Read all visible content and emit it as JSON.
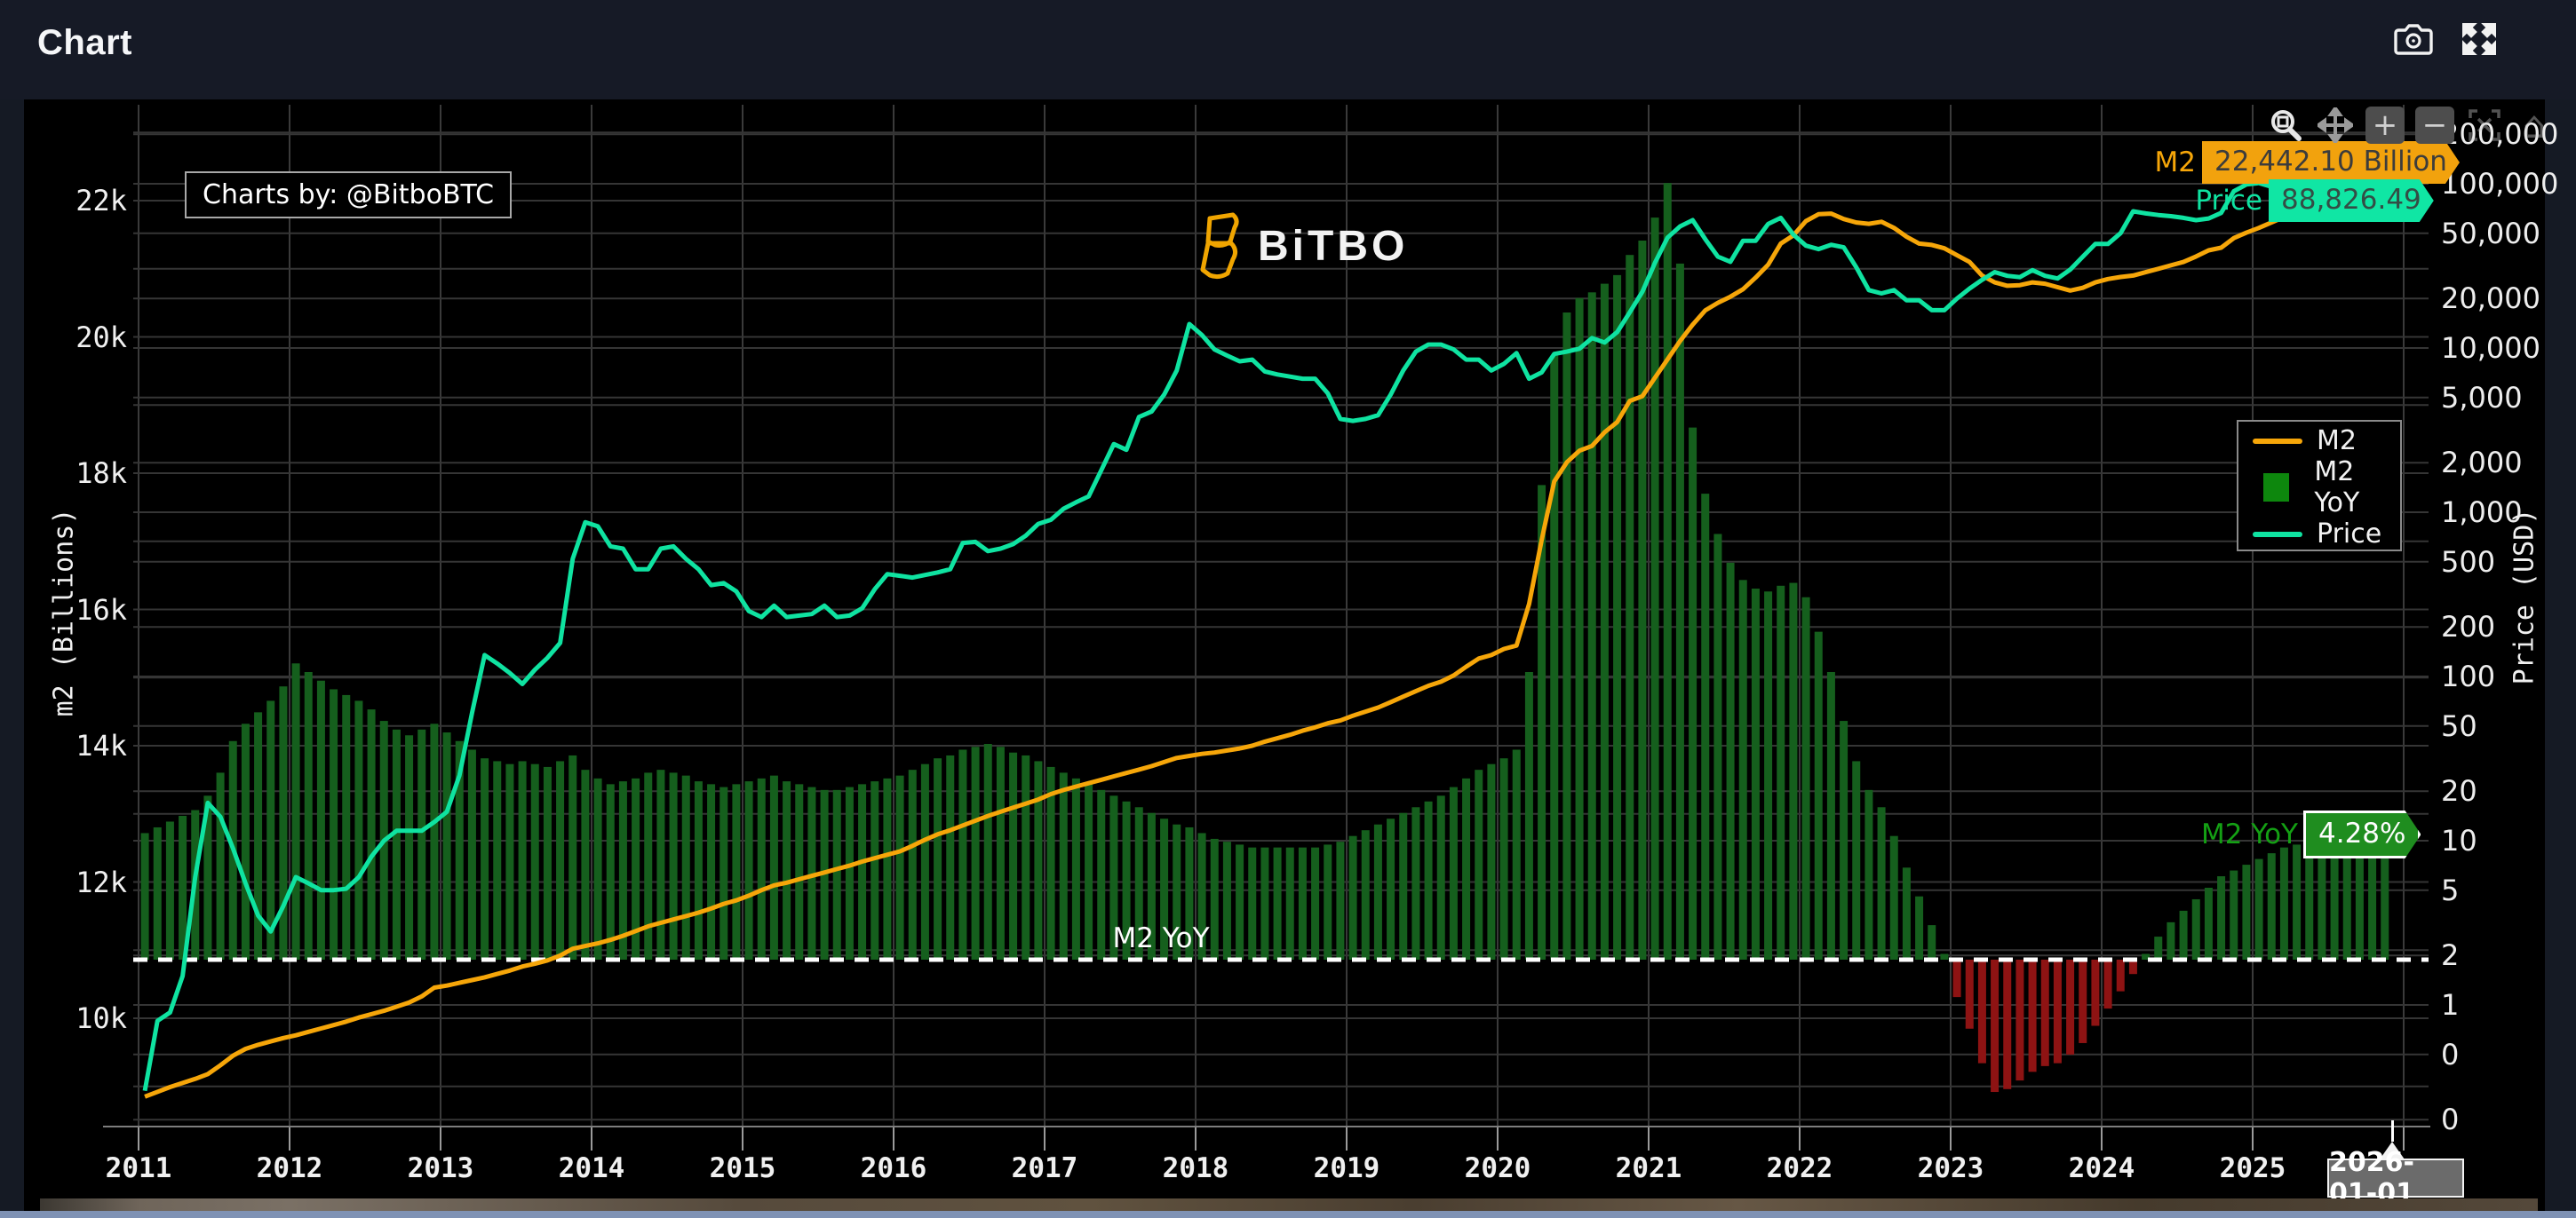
{
  "header": {
    "title": "Chart"
  },
  "watermark": {
    "text": "Charts by: @BitboBTC"
  },
  "logo": {
    "text": "BiTBO"
  },
  "modebar": {
    "buttons": [
      "box-zoom",
      "pan",
      "zoom-in",
      "zoom-out",
      "autoscale",
      "reset-axes"
    ],
    "zoom_in_symbol": "+",
    "zoom_out_symbol": "−",
    "reset_symbol": "⌂"
  },
  "legend": {
    "items": [
      {
        "label": "M2",
        "swatch": "line",
        "color": "#f6a609"
      },
      {
        "label": "M2 YoY",
        "swatch": "square",
        "color": "#0d870d"
      },
      {
        "label": "Price",
        "swatch": "line",
        "color": "#0fe3a1"
      }
    ]
  },
  "current_values": {
    "m2_label": "M2",
    "m2_value": "22,442.10 Billion",
    "price_label": "Price",
    "price_value": "88,826.49",
    "yoy_label": "M2 YoY",
    "yoy_value": "4.28%"
  },
  "annotations": {
    "yoy_line_label": "M2 YoY",
    "hover_date": "2026-01-01"
  },
  "axes": {
    "left": {
      "title": "m2 (Billions)",
      "tick_labels": [
        "22k",
        "20k",
        "18k",
        "16k",
        "14k",
        "12k",
        "10k"
      ],
      "tick_values": [
        22000,
        20000,
        18000,
        16000,
        14000,
        12000,
        10000
      ]
    },
    "right": {
      "title": "Price (USD)",
      "scale": "log",
      "tick_labels": [
        "200,000",
        "100,000",
        "50,000",
        "20,000",
        "10,000",
        "5,000",
        "2,000",
        "1,000",
        "500",
        "200",
        "100",
        "50",
        "20",
        "10",
        "5",
        "2",
        "1",
        "0",
        "0"
      ],
      "tick_values": [
        200000,
        100000,
        50000,
        20000,
        10000,
        5000,
        2000,
        1000,
        500,
        200,
        100,
        50,
        20,
        10,
        5,
        2,
        1,
        0.5,
        0.2
      ]
    },
    "x": {
      "tick_labels": [
        "2011",
        "2012",
        "2013",
        "2014",
        "2015",
        "2016",
        "2017",
        "2018",
        "2019",
        "2020",
        "2021",
        "2022",
        "2023",
        "2024",
        "2025"
      ]
    }
  },
  "colors": {
    "page_bg": "#151a24",
    "plot_bg": "#000000",
    "grid": "#353535",
    "vgrid": "#3a3a3a",
    "m2_line": "#f6a609",
    "price_line": "#0fe3a1",
    "bar_positive": "#155f1d",
    "bar_negative": "#8e1313",
    "m2_badge_bg": "#f2a20d",
    "m2_badge_text": "#3c3c3c",
    "price_badge_bg": "#10e6a4",
    "price_badge_text": "#334d45",
    "yoy_text": "#14a014",
    "yoy_badge_bg": "#1f8d1f",
    "dashed_reference": "#ffffff"
  },
  "chart_data": {
    "type": "mixed",
    "title": "",
    "x_monthly": {
      "start": "2011-01",
      "end": "2025-11",
      "points": 179
    },
    "x_year_ticks": [
      2011,
      2012,
      2013,
      2014,
      2015,
      2016,
      2017,
      2018,
      2019,
      2020,
      2021,
      2022,
      2023,
      2024,
      2025
    ],
    "left_axis": {
      "label": "m2 (Billions)",
      "ylim": [
        8400,
        23400
      ],
      "scale": "linear"
    },
    "right_axis": {
      "label": "Price (USD)",
      "ylim": [
        0.15,
        300000
      ],
      "scale": "log"
    },
    "grid": true,
    "legend_position": "right-center",
    "dashed_reference": {
      "label": "M2 YoY",
      "bar_axis_value": 0
    },
    "series": [
      {
        "name": "M2",
        "type": "line",
        "axis": "left",
        "units": "billions USD",
        "color": "#f6a609",
        "last_value": 22442.1,
        "values": [
          8850,
          8920,
          8990,
          9050,
          9110,
          9180,
          9310,
          9450,
          9550,
          9610,
          9660,
          9710,
          9750,
          9800,
          9850,
          9900,
          9950,
          10010,
          10060,
          10110,
          10170,
          10230,
          10320,
          10450,
          10480,
          10520,
          10560,
          10600,
          10650,
          10700,
          10760,
          10800,
          10850,
          10920,
          11020,
          11060,
          11100,
          11150,
          11210,
          11280,
          11350,
          11400,
          11450,
          11500,
          11550,
          11610,
          11680,
          11730,
          11800,
          11880,
          11950,
          11990,
          12040,
          12090,
          12140,
          12190,
          12240,
          12300,
          12350,
          12400,
          12450,
          12530,
          12620,
          12700,
          12760,
          12830,
          12900,
          12970,
          13030,
          13090,
          13150,
          13210,
          13290,
          13350,
          13400,
          13450,
          13500,
          13550,
          13600,
          13650,
          13700,
          13760,
          13820,
          13850,
          13880,
          13900,
          13930,
          13960,
          14000,
          14060,
          14110,
          14160,
          14220,
          14270,
          14330,
          14370,
          14440,
          14500,
          14560,
          14640,
          14720,
          14800,
          14880,
          14940,
          15030,
          15160,
          15280,
          15330,
          15420,
          15470,
          16080,
          17020,
          17880,
          18160,
          18330,
          18400,
          18600,
          18750,
          19060,
          19130,
          19400,
          19670,
          19940,
          20180,
          20390,
          20500,
          20590,
          20700,
          20870,
          21060,
          21370,
          21490,
          21700,
          21800,
          21810,
          21730,
          21680,
          21660,
          21690,
          21600,
          21470,
          21370,
          21350,
          21300,
          21200,
          21100,
          20900,
          20800,
          20750,
          20760,
          20800,
          20780,
          20730,
          20680,
          20720,
          20800,
          20850,
          20880,
          20900,
          20950,
          21000,
          21050,
          21100,
          21180,
          21270,
          21310,
          21450,
          21530,
          21600,
          21680,
          21760,
          21820,
          21900,
          21980,
          22050,
          22120,
          22200,
          22320,
          22442.1
        ]
      },
      {
        "name": "M2 YoY",
        "type": "bar",
        "axis": "hidden-percent",
        "units": "%",
        "color_positive": "#155f1d",
        "color_negative": "#8e1313",
        "last_value": 4.28,
        "values": [
          4.4,
          4.6,
          4.8,
          5.0,
          5.2,
          5.7,
          6.5,
          7.6,
          8.2,
          8.6,
          9.0,
          9.5,
          10.3,
          10.0,
          9.7,
          9.4,
          9.2,
          9.0,
          8.7,
          8.3,
          8.0,
          7.8,
          8.0,
          8.2,
          7.9,
          7.6,
          7.3,
          7.0,
          6.9,
          6.8,
          6.9,
          6.8,
          6.7,
          6.9,
          7.1,
          6.6,
          6.3,
          6.1,
          6.2,
          6.3,
          6.5,
          6.6,
          6.5,
          6.4,
          6.2,
          6.1,
          6.0,
          6.1,
          6.2,
          6.3,
          6.4,
          6.2,
          6.1,
          6.0,
          5.9,
          5.9,
          6.0,
          6.1,
          6.2,
          6.3,
          6.4,
          6.6,
          6.8,
          7.0,
          7.1,
          7.3,
          7.4,
          7.5,
          7.4,
          7.2,
          7.1,
          6.9,
          6.7,
          6.5,
          6.3,
          6.1,
          5.9,
          5.7,
          5.5,
          5.3,
          5.1,
          4.9,
          4.7,
          4.6,
          4.4,
          4.2,
          4.1,
          4.0,
          3.9,
          3.9,
          3.9,
          3.9,
          3.9,
          3.9,
          4.0,
          4.1,
          4.3,
          4.5,
          4.7,
          4.9,
          5.1,
          5.3,
          5.5,
          5.7,
          6.0,
          6.3,
          6.6,
          6.8,
          7.0,
          7.3,
          10.0,
          16.5,
          21.0,
          22.5,
          23.0,
          23.2,
          23.5,
          23.8,
          24.5,
          25.0,
          25.8,
          27.0,
          24.2,
          18.5,
          16.2,
          14.8,
          13.8,
          13.2,
          12.9,
          12.8,
          13.0,
          13.1,
          12.6,
          11.4,
          10.0,
          8.3,
          6.9,
          5.9,
          5.3,
          4.3,
          3.2,
          2.2,
          1.2,
          0.2,
          -1.3,
          -2.4,
          -3.6,
          -4.6,
          -4.5,
          -4.2,
          -3.9,
          -3.7,
          -3.6,
          -3.3,
          -2.9,
          -2.3,
          -1.7,
          -1.1,
          -0.5,
          0.2,
          0.8,
          1.3,
          1.7,
          2.1,
          2.5,
          2.9,
          3.1,
          3.3,
          3.5,
          3.7,
          3.9,
          4.0,
          4.1,
          4.2,
          4.3,
          4.5,
          4.4,
          4.3,
          4.28
        ]
      },
      {
        "name": "Price",
        "type": "line",
        "axis": "right-log",
        "units": "USD",
        "color": "#0fe3a1",
        "last_value": 88826.49,
        "values": [
          0.3,
          0.8,
          0.9,
          1.5,
          6,
          17,
          14,
          9,
          5.5,
          3.5,
          2.8,
          4,
          6,
          5.5,
          5,
          5,
          5.1,
          6,
          8,
          10,
          11.5,
          11.5,
          11.5,
          13,
          15,
          25,
          60,
          135,
          120,
          105,
          90,
          110,
          130,
          160,
          520,
          870,
          820,
          620,
          600,
          450,
          450,
          600,
          620,
          520,
          450,
          360,
          370,
          330,
          250,
          230,
          270,
          230,
          235,
          240,
          270,
          230,
          235,
          260,
          340,
          420,
          410,
          400,
          415,
          430,
          450,
          650,
          660,
          580,
          600,
          640,
          720,
          850,
          900,
          1050,
          1150,
          1250,
          1800,
          2600,
          2400,
          3800,
          4100,
          5200,
          7300,
          14000,
          12000,
          9800,
          9000,
          8300,
          8500,
          7200,
          6900,
          6700,
          6500,
          6500,
          5300,
          3700,
          3600,
          3700,
          3900,
          5200,
          7300,
          9500,
          10500,
          10500,
          9800,
          8500,
          8500,
          7300,
          8000,
          9300,
          6500,
          7100,
          9200,
          9500,
          9900,
          11500,
          10800,
          12500,
          16500,
          22000,
          33000,
          47000,
          55000,
          60000,
          46000,
          36000,
          33500,
          45000,
          45000,
          57000,
          62000,
          49000,
          42000,
          40000,
          42500,
          41000,
          31000,
          22500,
          21500,
          22500,
          19500,
          19500,
          17000,
          17000,
          20000,
          23000,
          26000,
          29000,
          27500,
          27000,
          29800,
          27500,
          26500,
          30000,
          36000,
          43000,
          43000,
          50000,
          68000,
          66000,
          64500,
          63500,
          62000,
          60000,
          61500,
          66500,
          90000,
          99000,
          101000,
          96000,
          86000,
          84000,
          103000,
          107000,
          113000,
          116000,
          112000,
          106000,
          88826.49
        ]
      }
    ]
  }
}
